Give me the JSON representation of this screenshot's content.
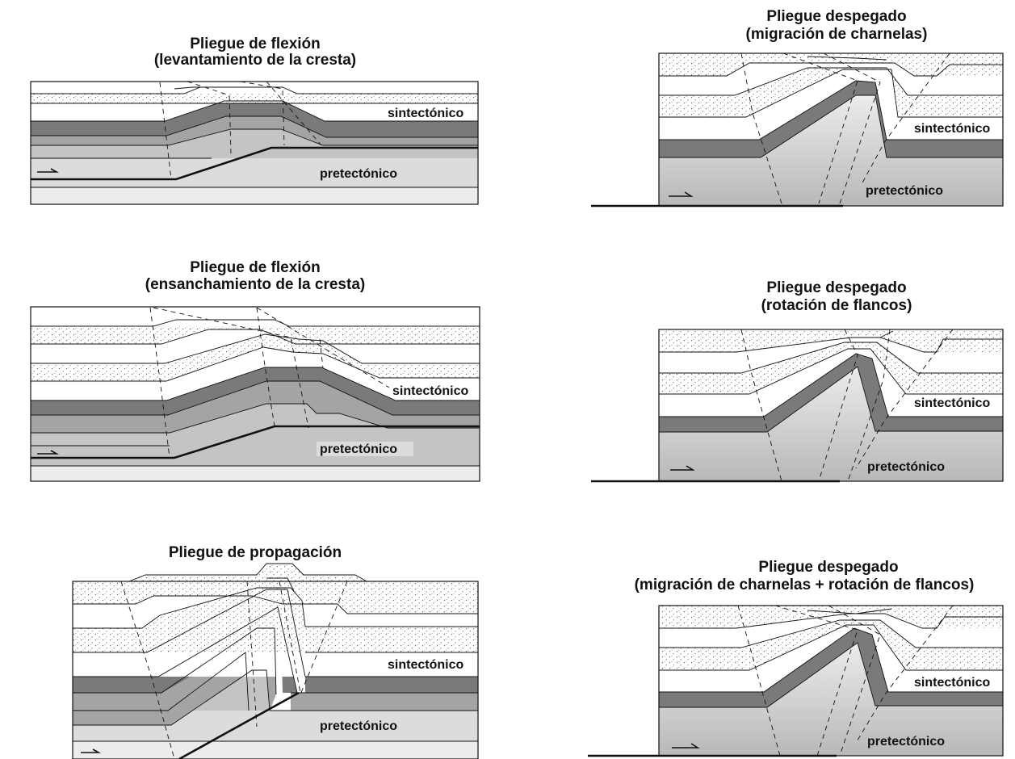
{
  "panels": [
    {
      "id": "flexion-levantamiento",
      "title_line1": "Pliegue de flexión",
      "title_line2": "(levantamiento de la cresta)",
      "upper_label": "sintectónico",
      "lower_label": "pretectónico"
    },
    {
      "id": "flexion-ensanchamiento",
      "title_line1": "Pliegue de flexión",
      "title_line2": "(ensanchamiento de la cresta)",
      "upper_label": "sintectónico",
      "lower_label": "pretectónico"
    },
    {
      "id": "propagacion",
      "title_line1": "Pliegue de propagación",
      "title_line2": "",
      "upper_label": "sintectónico",
      "lower_label": "pretectónico"
    },
    {
      "id": "despegado-migracion",
      "title_line1": "Pliegue despegado",
      "title_line2": "(migración de charnelas)",
      "upper_label": "sintectónico",
      "lower_label": "pretectónico"
    },
    {
      "id": "despegado-rotacion",
      "title_line1": "Pliegue despegado",
      "title_line2": "(rotación de flancos)",
      "upper_label": "sintectónico",
      "lower_label": "pretectónico"
    },
    {
      "id": "despegado-migracion-rotacion",
      "title_line1": "Pliegue despegado",
      "title_line2": "(migración de charnelas + rotación de flancos)",
      "upper_label": "sintectónico",
      "lower_label": "pretectónico"
    }
  ],
  "colors": {
    "stipple_bg": "#ffffff",
    "stipple_dot": "#555555",
    "white_layer": "#ffffff",
    "dark_layer": "#7a7a7a",
    "mid_layer": "#a4a4a4",
    "light_layer": "#c4c4c4",
    "pale_layer": "#dcdcdc",
    "palest_layer": "#ececec",
    "gradient_top": "#ececec",
    "gradient_bottom": "#b8b8b8",
    "line": "#111111"
  }
}
